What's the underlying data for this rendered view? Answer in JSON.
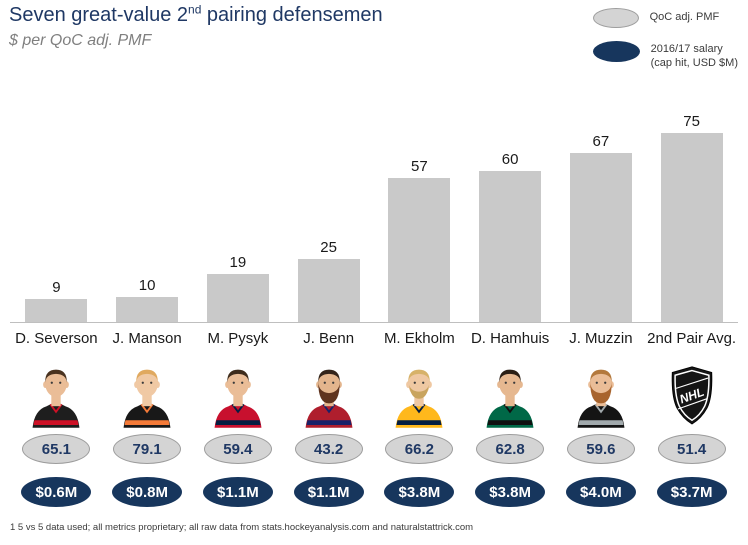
{
  "title": {
    "part1": "Seven great-value 2",
    "sup": "nd",
    "part2": " pairing defensemen",
    "subtitle": "$ per QoC adj. PMF"
  },
  "legend": {
    "qoc_label": "QoC adj. PMF",
    "salary_line1": "2016/17 salary",
    "salary_line2": "(cap hit, USD $M)"
  },
  "footnote": "1 5 vs 5 data used; all metrics proprietary; all raw data from stats.hockeyanalysis.com and naturalstattrick.com",
  "colors": {
    "title_navy": "#1f3864",
    "bar_gray": "#c9c9c9",
    "oval_gray_fill": "#d4d4d4",
    "oval_gray_border": "#9d9d9d",
    "salary_navy": "#17365d",
    "axis_gray": "#bfbfbf",
    "subtitle_gray": "#7f7f7f"
  },
  "chart_data": {
    "type": "bar",
    "title": "Seven great-value 2nd pairing defensemen",
    "subtitle": "$ per QoC adj. PMF",
    "ylabel": "$ per QoC adj. PMF",
    "xlabel": "",
    "ylim": [
      0,
      80
    ],
    "grid": false,
    "legend_position": "top-right",
    "bar_color": "#c9c9c9",
    "categories": [
      "D. Severson",
      "J. Manson",
      "M. Pysyk",
      "J. Benn",
      "M. Ekholm",
      "D. Hamhuis",
      "J. Muzzin",
      "2nd Pair Avg."
    ],
    "values": [
      9,
      10,
      19,
      25,
      57,
      60,
      67,
      75
    ],
    "series": [
      {
        "name": "$ per QoC adj. PMF",
        "values": [
          9,
          10,
          19,
          25,
          57,
          60,
          67,
          75
        ]
      },
      {
        "name": "QoC adj. PMF",
        "values": [
          65.1,
          79.1,
          59.4,
          43.2,
          66.2,
          62.8,
          59.6,
          51.4
        ]
      },
      {
        "name": "2016/17 salary (cap hit, USD $M)",
        "values": [
          "$0.6M",
          "$0.8M",
          "$1.1M",
          "$1.1M",
          "$3.8M",
          "$3.8M",
          "$4.0M",
          "$3.7M"
        ]
      }
    ],
    "avatars": [
      {
        "type": "player",
        "jersey": "#1e1e1e",
        "accent": "#ce1126",
        "hair": "#4a3320",
        "beard": null,
        "beard_full": false,
        "skin": "#eabd97"
      },
      {
        "type": "player",
        "jersey": "#181818",
        "accent": "#f47a38",
        "hair": "#e0a95f",
        "beard": null,
        "beard_full": false,
        "skin": "#f0c9a4"
      },
      {
        "type": "player",
        "jersey": "#c8102e",
        "accent": "#041e42",
        "hair": "#3e2c1c",
        "beard": null,
        "beard_full": false,
        "skin": "#eabd97"
      },
      {
        "type": "player",
        "jersey": "#af1e2d",
        "accent": "#192168",
        "hair": "#33241a",
        "beard": "#5f341f",
        "beard_full": true,
        "skin": "#e3b58d"
      },
      {
        "type": "player",
        "jersey": "#ffb81c",
        "accent": "#041e42",
        "hair": "#d7b269",
        "beard": "#c9a45e",
        "beard_full": false,
        "skin": "#efc8a2"
      },
      {
        "type": "player",
        "jersey": "#006847",
        "accent": "#101010",
        "hair": "#2b1f15",
        "beard": null,
        "beard_full": false,
        "skin": "#e6b890"
      },
      {
        "type": "player",
        "jersey": "#141414",
        "accent": "#a2aaad",
        "hair": "#b3793d",
        "beard": "#a8642e",
        "beard_full": true,
        "skin": "#eabd97"
      },
      {
        "type": "nhl-shield"
      }
    ]
  }
}
